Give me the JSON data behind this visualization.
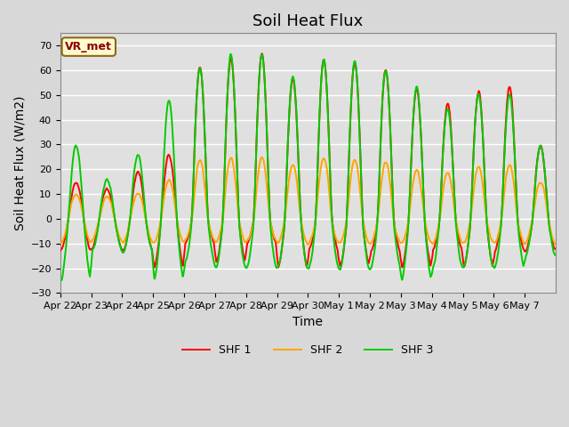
{
  "title": "Soil Heat Flux",
  "ylabel": "Soil Heat Flux (W/m2)",
  "xlabel": "Time",
  "ylim": [
    -30,
    75
  ],
  "yticks": [
    -30,
    -20,
    -10,
    0,
    10,
    20,
    30,
    40,
    50,
    60,
    70
  ],
  "line_colors": {
    "SHF 1": "#ff0000",
    "SHF 2": "#ffa500",
    "SHF 3": "#00cc00"
  },
  "legend_labels": [
    "SHF 1",
    "SHF 2",
    "SHF 3"
  ],
  "xtick_labels": [
    "Apr 22",
    "Apr 23",
    "Apr 24",
    "Apr 25",
    "Apr 26",
    "Apr 27",
    "Apr 28",
    "Apr 29",
    "Apr 30",
    "May 1",
    "May 2",
    "May 3",
    "May 4",
    "May 5",
    "May 6",
    "May 7"
  ],
  "annotation_text": "VR_met",
  "annotation_color": "#8B0000",
  "annotation_bg": "#FFFACD",
  "fig_bg": "#d8d8d8",
  "plot_bg": "#e0e0e0",
  "grid_color": "#ffffff",
  "title_fontsize": 13,
  "axis_fontsize": 10,
  "tick_fontsize": 8,
  "legend_fontsize": 9,
  "linewidth": 1.4,
  "n_days": 16,
  "day_amps_shf1": [
    15,
    12,
    19,
    26,
    62,
    66,
    67,
    57,
    65,
    64,
    61,
    53,
    47,
    52,
    54,
    30
  ],
  "night_vals_shf1": [
    -13,
    -12,
    -13,
    -20,
    -10,
    -18,
    -10,
    -20,
    -13,
    -20,
    -13,
    -20,
    -13,
    -20,
    -13,
    -13
  ],
  "day_amps_shf2": [
    10,
    9,
    10,
    16,
    24,
    25,
    25,
    22,
    25,
    24,
    23,
    20,
    19,
    21,
    22,
    15
  ],
  "night_vals_shf2": [
    -10,
    -9,
    -10,
    -10,
    -9,
    -10,
    -9,
    -10,
    -10,
    -10,
    -10,
    -10,
    -10,
    -10,
    -10,
    -10
  ],
  "day_amps_shf3": [
    30,
    16,
    26,
    48,
    62,
    67,
    67,
    58,
    65,
    64,
    61,
    54,
    45,
    51,
    51,
    30
  ],
  "night_vals_shf3": [
    -25,
    -13,
    -14,
    -25,
    -18,
    -20,
    -20,
    -20,
    -20,
    -21,
    -20,
    -25,
    -20,
    -20,
    -20,
    -15
  ]
}
